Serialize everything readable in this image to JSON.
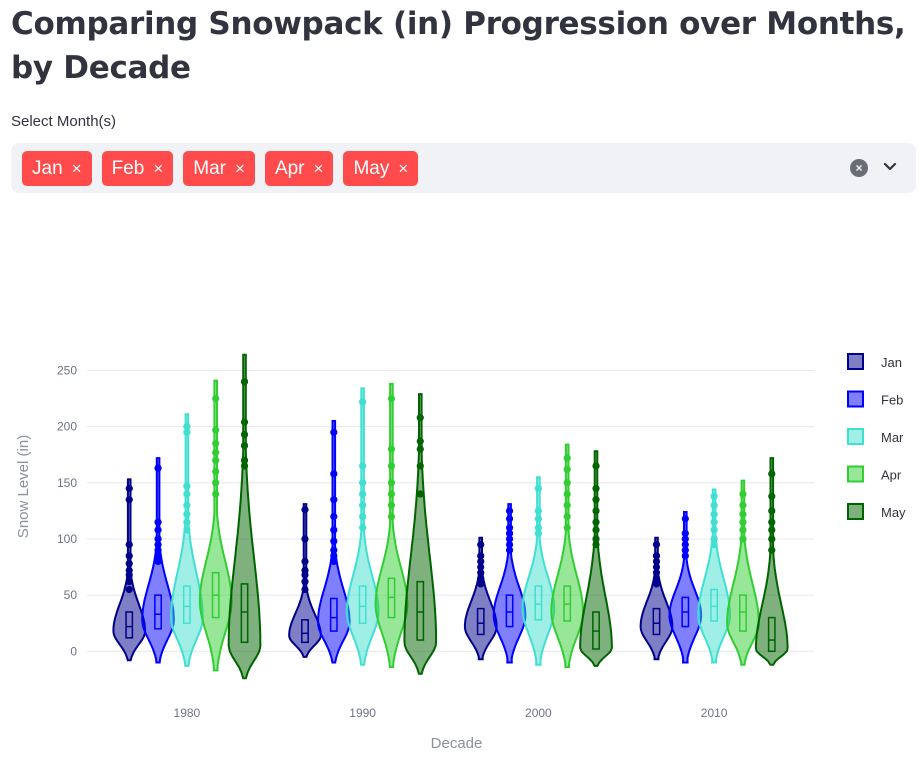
{
  "page": {
    "title": "Comparing Snowpack (in) Progression over Months, by Decade",
    "select_label": "Select Month(s)",
    "chips": [
      {
        "label": "Jan",
        "remove": "×"
      },
      {
        "label": "Feb",
        "remove": "×"
      },
      {
        "label": "Mar",
        "remove": "×"
      },
      {
        "label": "Apr",
        "remove": "×"
      },
      {
        "label": "May",
        "remove": "×"
      }
    ],
    "clear_symbol": "×",
    "accent": "#ff4b4b"
  },
  "chart_data": {
    "type": "violin",
    "title": "",
    "xlabel": "Decade",
    "ylabel": "Snow Level (in)",
    "categories": [
      "1980",
      "1990",
      "2000",
      "2010"
    ],
    "ylim": [
      -30,
      270
    ],
    "yticks": [
      0,
      50,
      100,
      150,
      200,
      250
    ],
    "grid": true,
    "legend_position": "right",
    "series": [
      {
        "name": "Jan",
        "color": "#00008b",
        "min": [
          -8,
          -5,
          -7,
          -7
        ],
        "max": [
          153,
          131,
          101,
          101
        ],
        "median": [
          22,
          16,
          25,
          25
        ],
        "q1": [
          12,
          8,
          15,
          15
        ],
        "q3": [
          35,
          28,
          38,
          38
        ],
        "mode": [
          18,
          14,
          22,
          22
        ],
        "outliers": [
          [
            55,
            62,
            68,
            72,
            78,
            85,
            95,
            135,
            145
          ],
          [
            55,
            62,
            68,
            72,
            80,
            100,
            126
          ],
          [
            60,
            65,
            70,
            75,
            80,
            85,
            95
          ],
          [
            60,
            65,
            70,
            75,
            80,
            85,
            95
          ]
        ]
      },
      {
        "name": "Feb",
        "color": "#0000ff",
        "min": [
          -10,
          -10,
          -10,
          -10
        ],
        "max": [
          172,
          205,
          131,
          124
        ],
        "median": [
          33,
          30,
          35,
          35
        ],
        "q1": [
          20,
          18,
          22,
          22
        ],
        "q3": [
          50,
          47,
          50,
          48
        ],
        "mode": [
          28,
          26,
          32,
          32
        ],
        "outliers": [
          [
            80,
            85,
            90,
            95,
            100,
            108,
            115,
            163
          ],
          [
            80,
            85,
            90,
            98,
            108,
            120,
            135,
            158,
            195
          ],
          [
            90,
            95,
            100,
            105,
            110,
            118,
            125
          ],
          [
            85,
            90,
            95,
            100,
            105,
            118
          ]
        ]
      },
      {
        "name": "Mar",
        "color": "#40e0d0",
        "min": [
          -13,
          -12,
          -12,
          -10
        ],
        "max": [
          211,
          234,
          155,
          144
        ],
        "median": [
          40,
          40,
          42,
          40
        ],
        "q1": [
          25,
          25,
          28,
          27
        ],
        "q3": [
          58,
          58,
          58,
          55
        ],
        "mode": [
          30,
          35,
          38,
          32
        ],
        "outliers": [
          [
            108,
            115,
            122,
            130,
            140,
            147,
            195,
            200
          ],
          [
            110,
            120,
            130,
            140,
            150,
            165,
            222
          ],
          [
            105,
            110,
            118,
            125,
            145
          ],
          [
            95,
            100,
            108,
            115,
            122,
            130,
            138
          ]
        ]
      },
      {
        "name": "Apr",
        "color": "#32cd32",
        "min": [
          -17,
          -14,
          -14,
          -12
        ],
        "max": [
          241,
          238,
          184,
          152
        ],
        "median": [
          50,
          48,
          42,
          35
        ],
        "q1": [
          30,
          30,
          27,
          18
        ],
        "q3": [
          70,
          65,
          58,
          50
        ],
        "mode": [
          45,
          42,
          35,
          25
        ],
        "outliers": [
          [
            140,
            150,
            160,
            170,
            177,
            185,
            197,
            225
          ],
          [
            120,
            130,
            140,
            150,
            165,
            180,
            225
          ],
          [
            110,
            120,
            130,
            140,
            150,
            162,
            172
          ],
          [
            100,
            108,
            115,
            122,
            130,
            140
          ]
        ]
      },
      {
        "name": "May",
        "color": "#006400",
        "min": [
          -24,
          -20,
          -13,
          -12
        ],
        "max": [
          264,
          229,
          178,
          172
        ],
        "median": [
          35,
          35,
          18,
          10
        ],
        "q1": [
          8,
          10,
          2,
          0
        ],
        "q3": [
          60,
          62,
          35,
          30
        ],
        "mode": [
          5,
          8,
          3,
          2
        ],
        "outliers": [
          [
            165,
            170,
            183,
            193,
            204,
            240
          ],
          [
            140,
            165,
            180,
            187,
            208
          ],
          [
            95,
            100,
            108,
            115,
            125,
            135,
            145,
            165
          ],
          [
            90,
            100,
            108,
            115,
            125,
            138,
            158
          ]
        ]
      }
    ]
  }
}
